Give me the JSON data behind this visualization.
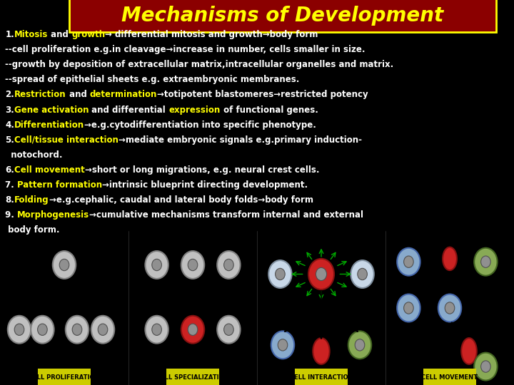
{
  "background_color": "#000000",
  "title": "Mechanisms of Development",
  "title_color": "#FFFF00",
  "title_bg": "#8B0000",
  "title_fontsize": 20,
  "text_color": "#FFFFFF",
  "yellow_color": "#FFFF00",
  "lines": [
    {
      "parts": [
        {
          "text": "1.",
          "color": "#FFFFFF"
        },
        {
          "text": "Mitosis",
          "color": "#FFFF00"
        },
        {
          "text": " and ",
          "color": "#FFFFFF"
        },
        {
          "text": "growth",
          "color": "#FFFF00"
        },
        {
          "text": "→ differential mitosis and growth→body form",
          "color": "#FFFFFF"
        }
      ]
    },
    {
      "parts": [
        {
          "text": "--cell proliferation e.g.in cleavage→increase in number, cells smaller in size.",
          "color": "#FFFFFF"
        }
      ]
    },
    {
      "parts": [
        {
          "text": "--growth by deposition of extracellular matrix,intracellular organelles and matrix.",
          "color": "#FFFFFF"
        }
      ]
    },
    {
      "parts": [
        {
          "text": "--spread of epithelial sheets e.g. extraembryonic membranes.",
          "color": "#FFFFFF"
        }
      ]
    },
    {
      "parts": [
        {
          "text": "2.",
          "color": "#FFFFFF"
        },
        {
          "text": "Restriction",
          "color": "#FFFF00"
        },
        {
          "text": " and ",
          "color": "#FFFFFF"
        },
        {
          "text": "determination",
          "color": "#FFFF00"
        },
        {
          "text": "→totipotent blastomeres→restricted potency",
          "color": "#FFFFFF"
        }
      ]
    },
    {
      "parts": [
        {
          "text": "3.",
          "color": "#FFFFFF"
        },
        {
          "text": "Gene activation",
          "color": "#FFFF00"
        },
        {
          "text": " and differential ",
          "color": "#FFFFFF"
        },
        {
          "text": "expression",
          "color": "#FFFF00"
        },
        {
          "text": " of functional genes.",
          "color": "#FFFFFF"
        }
      ]
    },
    {
      "parts": [
        {
          "text": "4.",
          "color": "#FFFFFF"
        },
        {
          "text": "Differentiation",
          "color": "#FFFF00"
        },
        {
          "text": "→e.g.cytodifferentiation into specific phenotype.",
          "color": "#FFFFFF"
        }
      ]
    },
    {
      "parts": [
        {
          "text": "5.",
          "color": "#FFFFFF"
        },
        {
          "text": "Cell/tissue interaction",
          "color": "#FFFF00"
        },
        {
          "text": "→mediate embryonic signals e.g.primary induction-",
          "color": "#FFFFFF"
        }
      ]
    },
    {
      "parts": [
        {
          "text": "  notochord.",
          "color": "#FFFFFF"
        }
      ]
    },
    {
      "parts": [
        {
          "text": "6.",
          "color": "#FFFFFF"
        },
        {
          "text": "Cell movement",
          "color": "#FFFF00"
        },
        {
          "text": "→short or long migrations, e.g. neural crest cells.",
          "color": "#FFFFFF"
        }
      ]
    },
    {
      "parts": [
        {
          "text": "7. ",
          "color": "#FFFFFF"
        },
        {
          "text": "Pattern formation",
          "color": "#FFFF00"
        },
        {
          "text": "→intrinsic blueprint directing development.",
          "color": "#FFFFFF"
        }
      ]
    },
    {
      "parts": [
        {
          "text": "8.",
          "color": "#FFFFFF"
        },
        {
          "text": "Folding",
          "color": "#FFFF00"
        },
        {
          "text": "→e.g.cephalic, caudal and lateral body folds→body form",
          "color": "#FFFFFF"
        }
      ]
    },
    {
      "parts": [
        {
          "text": "9. ",
          "color": "#FFFFFF"
        },
        {
          "text": "Morphogenesis",
          "color": "#FFFF00"
        },
        {
          "text": "→cumulative mechanisms transform internal and external",
          "color": "#FFFFFF"
        }
      ]
    },
    {
      "parts": [
        {
          "text": " body form.",
          "color": "#FFFFFF"
        }
      ]
    }
  ],
  "bottom_labels": [
    "CELL PROLIFERATION",
    "CELL SPECIALIZATION",
    "CELL INTERACTION",
    "CELL MOVEMENT"
  ],
  "bottom_label_color": "#000000",
  "bottom_label_bg": "#CCCC00",
  "image_area_color": "#E8E8E0",
  "text_fontsize": 8.5
}
